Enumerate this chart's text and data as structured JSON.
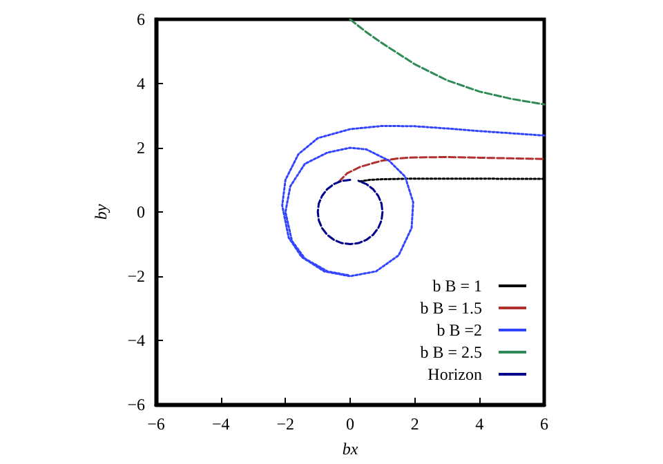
{
  "chart_data": {
    "type": "line",
    "xlabel": "bx",
    "ylabel": "by",
    "xlim": [
      -6,
      6
    ],
    "ylim": [
      -6,
      6
    ],
    "xticks": [
      -6,
      -4,
      -2,
      0,
      2,
      4,
      6
    ],
    "yticks": [
      -6,
      -4,
      -2,
      0,
      2,
      4,
      6
    ],
    "grid": false,
    "legend": "bottom right",
    "marker": "none",
    "series": [
      {
        "name": "b B = 1",
        "color": "#000000",
        "line_style": "dotted",
        "x": [
          0.3,
          0.6,
          1,
          1.5,
          2,
          3,
          4,
          5,
          6
        ],
        "values": [
          0.95,
          1.0,
          1.02,
          1.03,
          1.04,
          1.04,
          1.04,
          1.03,
          1.03
        ]
      },
      {
        "name": "b B = 1.5",
        "color": "#b03030",
        "line_style": "dashed",
        "x": [
          -0.35,
          -0.1,
          0.3,
          0.7,
          1,
          1.5,
          2,
          3,
          4,
          5,
          6
        ],
        "values": [
          0.94,
          1.2,
          1.4,
          1.52,
          1.6,
          1.67,
          1.7,
          1.71,
          1.69,
          1.67,
          1.65
        ]
      },
      {
        "name": "b B =2",
        "color": "#3344ff",
        "line_style": "dotted",
        "x": [
          6,
          5,
          4,
          3,
          2,
          1,
          0,
          -1,
          -1.6,
          -2,
          -2.1,
          -1.9,
          -1.5,
          -0.8,
          0,
          0.8,
          1.5,
          1.9,
          1.95,
          1.7,
          1.2,
          0.5,
          0,
          -0.7,
          -1.4,
          -1.85,
          -2.0,
          -1.8,
          -1.4,
          -0.7,
          0
        ],
        "values": [
          2.38,
          2.45,
          2.52,
          2.6,
          2.67,
          2.68,
          2.58,
          2.3,
          1.8,
          1.0,
          0.2,
          -0.8,
          -1.4,
          -1.85,
          -2.0,
          -1.85,
          -1.35,
          -0.5,
          0.3,
          1.1,
          1.6,
          1.95,
          2.0,
          1.85,
          1.5,
          0.8,
          0,
          -0.9,
          -1.45,
          -1.85,
          -1.98
        ]
      },
      {
        "name": "b B = 2.5",
        "color": "#2e8b57",
        "line_style": "dashed",
        "x": [
          0,
          0.5,
          1,
          2,
          3,
          4,
          5,
          6
        ],
        "values": [
          6,
          5.6,
          5.25,
          4.6,
          4.1,
          3.75,
          3.52,
          3.35
        ]
      },
      {
        "name": "Horizon",
        "color": "#00008b",
        "line_style": "dashed",
        "x": [
          0,
          -0.26,
          -0.5,
          -0.71,
          -0.87,
          -0.97,
          -1,
          -0.97,
          -0.87,
          -0.71,
          -0.5,
          -0.26,
          0,
          0.26,
          0.5,
          0.71,
          0.87,
          0.97,
          1,
          0.97,
          0.87,
          0.71,
          0.5,
          0.26
        ],
        "values": [
          1,
          0.97,
          0.87,
          0.71,
          0.5,
          0.26,
          0,
          -0.26,
          -0.5,
          -0.71,
          -0.87,
          -0.97,
          -1,
          -0.97,
          -0.87,
          -0.71,
          -0.5,
          -0.26,
          0,
          0.26,
          0.5,
          0.71,
          0.87,
          0.97
        ]
      }
    ]
  }
}
